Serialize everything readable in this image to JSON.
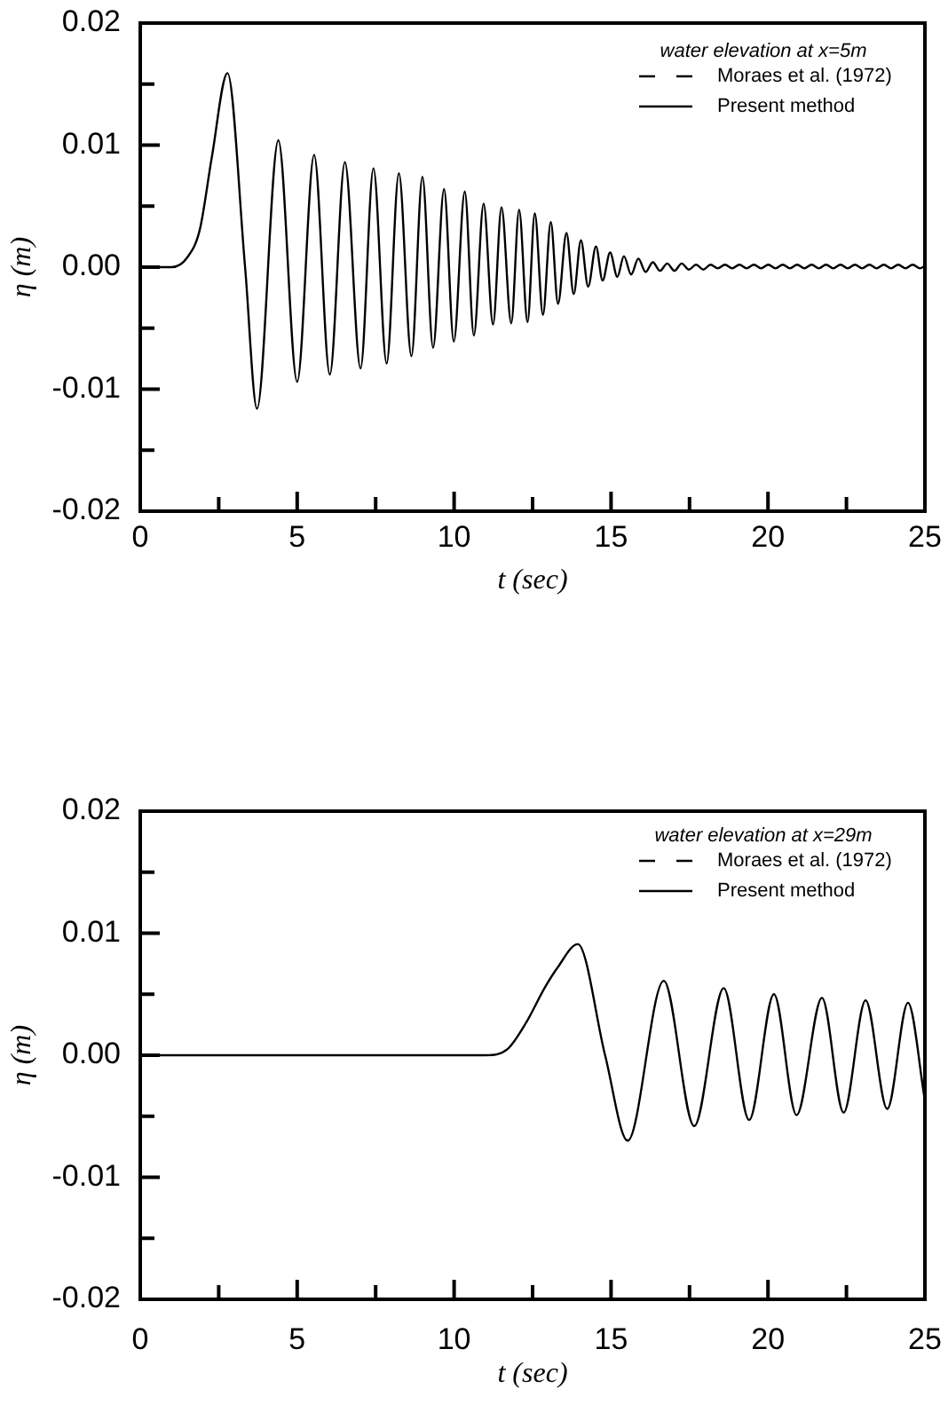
{
  "chart_data": [
    {
      "type": "line",
      "legend_title": "water elevation at x=5m",
      "xlabel": "t (sec)",
      "ylabel": "η (m)",
      "xlim": [
        0,
        25
      ],
      "ylim": [
        -0.02,
        0.02
      ],
      "xticks": [
        0,
        {
          "value": 2.5,
          "label": null
        },
        5,
        {
          "value": 7.5,
          "label": null
        },
        10,
        {
          "value": 12.5,
          "label": null
        },
        15,
        {
          "value": 17.5,
          "label": null
        },
        20,
        {
          "value": 22.5,
          "label": null
        },
        25
      ],
      "yticks": [
        -0.02,
        {
          "value": -0.015,
          "label": null
        },
        -0.01,
        {
          "value": -0.005,
          "label": null
        },
        {
          "value": 0,
          "label": "0.00"
        },
        {
          "value": 0.005,
          "label": null
        },
        0.01,
        {
          "value": 0.015,
          "label": null
        },
        0.02
      ],
      "grid": false,
      "legend": "top right",
      "marker": "none",
      "series": [
        {
          "name": "Moraes et al. (1972)",
          "color": "#000000",
          "line_style": "dashed"
        },
        {
          "name": "Present method",
          "color": "#000000",
          "line_style": "solid",
          "x": [
            0,
            1.0,
            1.5,
            1.9,
            2.28,
            2.78,
            3.34,
            3.72,
            4.4,
            5.0,
            5.54,
            6.04,
            6.52,
            7.02,
            7.43,
            7.85,
            8.24,
            8.64,
            8.99,
            9.33,
            9.68,
            9.99,
            10.34,
            10.63,
            10.94,
            11.24,
            11.51,
            11.82,
            12.07,
            12.34,
            12.57,
            12.83,
            13.08,
            13.31,
            13.58,
            13.81,
            14.04,
            14.27,
            14.52,
            14.73,
            14.97,
            15.2,
            15.41,
            15.64,
            15.87,
            16.1,
            16.33,
            16.56,
            16.79,
            17.02,
            17.25,
            17.48,
            17.71,
            17.94,
            18.17,
            18.4,
            18.63,
            18.86,
            19.09,
            19.32,
            19.55,
            19.78,
            20.01,
            20.24,
            20.47,
            20.7,
            20.93,
            21.16,
            21.39,
            21.62,
            21.85,
            22.08,
            22.31,
            22.54,
            22.77,
            23.0,
            23.23,
            23.46,
            23.69,
            23.92,
            24.15,
            24.38,
            24.61,
            24.84,
            25.0
          ],
          "values": [
            0,
            0,
            0.0008,
            0.0031,
            0.009,
            0.0159,
            0,
            -0.0116,
            0.0104,
            -0.0094,
            0.0092,
            -0.0088,
            0.0086,
            -0.0083,
            0.0081,
            -0.0079,
            0.0077,
            -0.0073,
            0.0074,
            -0.0066,
            0.0064,
            -0.0061,
            0.0062,
            -0.0056,
            0.0052,
            -0.0047,
            0.0049,
            -0.0046,
            0.0047,
            -0.0045,
            0.0044,
            -0.0039,
            0.0037,
            -0.003,
            0.0028,
            -0.0022,
            0.0022,
            -0.0016,
            0.0017,
            -0.0011,
            0.0012,
            -0.0008,
            0.0009,
            -0.0006,
            0.0007,
            -0.0004,
            0.0004,
            -0.0003,
            0.0003,
            -0.0003,
            0.0003,
            -0.0002,
            0.0002,
            -0.0002,
            0.0002,
            -0.0001,
            0.0002,
            -0.0001,
            0.0002,
            -0.0001,
            0.0002,
            -0.0001,
            0.0002,
            -0.0001,
            0.0002,
            -0.0001,
            0.0002,
            -0.0001,
            0.0002,
            -0.0001,
            0.0002,
            -0.0001,
            0.0002,
            -0.0001,
            0.0002,
            -0.0001,
            0.0002,
            -0.0001,
            0.0002,
            -0.0001,
            0.0002,
            -0.0001,
            0.0002,
            -0.0001,
            0.0001
          ]
        }
      ]
    },
    {
      "type": "line",
      "legend_title": "water elevation at x=29m",
      "xlabel": "t (sec)",
      "ylabel": "η (m)",
      "xlim": [
        0,
        25
      ],
      "ylim": [
        -0.02,
        0.02
      ],
      "xticks": [
        0,
        {
          "value": 2.5,
          "label": null
        },
        5,
        {
          "value": 7.5,
          "label": null
        },
        10,
        {
          "value": 12.5,
          "label": null
        },
        15,
        {
          "value": 17.5,
          "label": null
        },
        20,
        {
          "value": 22.5,
          "label": null
        },
        25
      ],
      "yticks": [
        -0.02,
        {
          "value": -0.015,
          "label": null
        },
        -0.01,
        {
          "value": -0.005,
          "label": null
        },
        {
          "value": 0,
          "label": "0.00"
        },
        {
          "value": 0.005,
          "label": null
        },
        0.01,
        {
          "value": 0.015,
          "label": null
        },
        0.02
      ],
      "grid": false,
      "legend": "top right",
      "marker": "none",
      "series": [
        {
          "name": "Moraes et al. (1972)",
          "color": "#000000",
          "line_style": "dashed"
        },
        {
          "name": "Present method",
          "color": "#000000",
          "line_style": "solid",
          "x": [
            0,
            11.0,
            11.7,
            12.3,
            12.88,
            13.3,
            13.94,
            14.81,
            15.53,
            16.68,
            17.65,
            18.59,
            19.4,
            20.19,
            20.91,
            21.72,
            22.41,
            23.11,
            23.8,
            24.46,
            25
          ],
          "values": [
            0,
            0,
            0.0005,
            0.0027,
            0.0055,
            0.0072,
            0.0091,
            0,
            -0.007,
            0.0061,
            -0.0058,
            0.0055,
            -0.0053,
            0.005,
            -0.0049,
            0.0047,
            -0.0047,
            0.0045,
            -0.0044,
            0.0043,
            -0.0037
          ]
        }
      ]
    }
  ]
}
